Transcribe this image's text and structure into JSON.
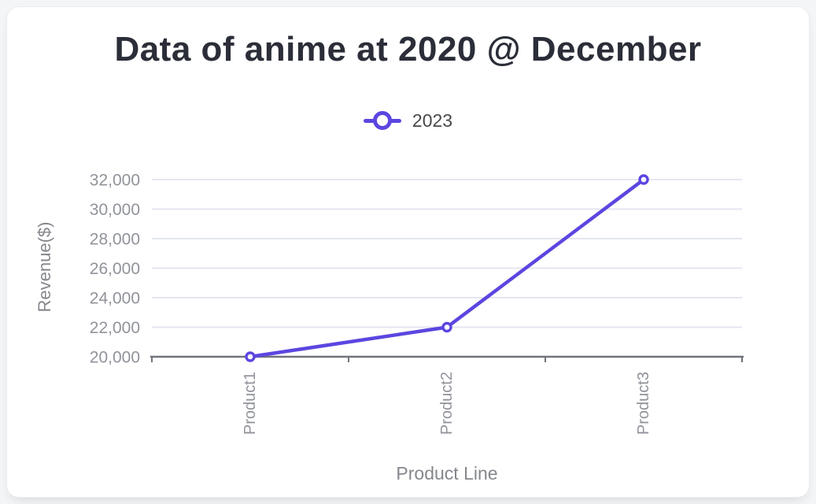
{
  "chart_data": {
    "type": "line",
    "title": "Data of anime at 2020 @ December",
    "xlabel": "Product Line",
    "ylabel": "Revenue($)",
    "categories": [
      "Product1",
      "Product2",
      "Product3"
    ],
    "series": [
      {
        "name": "2023",
        "values": [
          20000,
          22000,
          32000
        ]
      }
    ],
    "ylim": [
      20000,
      32000
    ],
    "ytick_step": 2000,
    "ytick_labels": [
      "20,000",
      "22,000",
      "24,000",
      "26,000",
      "28,000",
      "30,000",
      "32,000"
    ],
    "grid": true,
    "legend_position": "top-center",
    "marker": "hollow-circle",
    "colors": {
      "series": "#5b46e0",
      "marker_fill": "#ffffff",
      "grid_line": "#e4e6f1",
      "axis_line": "#6f737c",
      "tick_text": "#90939a",
      "axis_title_text": "#85878d",
      "title_text": "#2b2e38",
      "legend_text": "#48484c",
      "card_bg": "#ffffff",
      "page_bg": "#f4f5f7"
    }
  }
}
